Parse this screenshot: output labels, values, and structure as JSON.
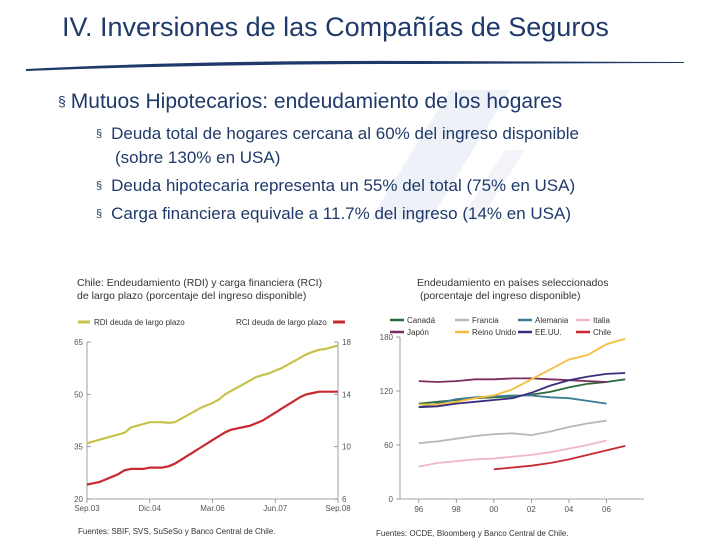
{
  "slide": {
    "title": "IV. Inversiones de las Compañías de Seguros",
    "main_bullet": "Mutuos Hipotecarios: endeudamiento de los hogares",
    "sub_bullets": [
      "Deuda total de hogares cercana al 60% del ingreso disponible",
      "(sobre 130% en USA)",
      "Deuda hipotecaria representa un 55% del total (75% en USA)",
      "Carga financiera equivale a 11.7% del ingreso (14% en USA)"
    ],
    "bullet_glyph": "§",
    "main_bullet_glyph": "§"
  },
  "left_chart": {
    "caption_line1": "Chile: Endeudamiento (RDI) y carga financiera (RCI)",
    "caption_line2": "de largo plazo (porcentaje del ingreso disponible)",
    "source": "Fuentes: SBIF, SVS, SuSeSo y Banco Central de Chile."
  },
  "right_chart": {
    "caption_line1": "Endeudamiento en países seleccionados",
    "caption_line2": "(porcentaje del ingreso disponible)",
    "source": "Fuentes: OCDE, Bloomberg y Banco Central de Chile."
  },
  "chart_data": [
    {
      "type": "line",
      "title": "Chile: Endeudamiento (RDI) y carga financiera (RCI) de largo plazo (porcentaje del ingreso disponible)",
      "categories": [
        "Sep.03",
        "Dic.04",
        "Mar.06",
        "Jun.07",
        "Sep.08"
      ],
      "y_left": {
        "ylim": [
          20,
          65
        ],
        "ticks": [
          20,
          35,
          50,
          65
        ]
      },
      "y_right": {
        "ylim": [
          6,
          18
        ],
        "ticks": [
          6,
          10,
          14,
          18
        ]
      },
      "series": [
        {
          "name": "RDI deuda de largo plazo",
          "axis": "left",
          "color": "#c6c24a",
          "x": [
            0,
            0.5,
            1,
            1.5,
            2,
            2.5,
            3,
            3.5,
            4,
            4.5,
            5,
            5.5,
            6,
            6.5,
            7,
            7.5,
            8,
            8.5,
            9,
            9.5,
            10,
            10.5,
            11,
            11.5,
            12,
            12.5,
            13,
            13.5,
            14,
            14.5,
            15,
            15.5,
            16,
            16.5,
            17,
            17.5,
            18,
            18.5,
            19,
            19.5,
            20
          ],
          "values": [
            36,
            36.5,
            37,
            37.5,
            38,
            38.5,
            39,
            40.5,
            41,
            41.5,
            42,
            42,
            42,
            41.8,
            42,
            43,
            44,
            45,
            46,
            46.8,
            47.5,
            48.5,
            50,
            51,
            52,
            53,
            54,
            55,
            55.5,
            56,
            56.8,
            57.5,
            58.5,
            59.5,
            60.5,
            61.5,
            62.2,
            62.8,
            63,
            63.5,
            64
          ]
        },
        {
          "name": "RCI deuda de largo plazo",
          "axis": "right",
          "color": "#c8282e",
          "x": [
            0,
            0.5,
            1,
            1.5,
            2,
            2.5,
            3,
            3.5,
            4,
            4.5,
            5,
            5.5,
            6,
            6.5,
            7,
            7.5,
            8,
            8.5,
            9,
            9.5,
            10,
            10.5,
            11,
            11.5,
            12,
            12.5,
            13,
            13.5,
            14,
            14.5,
            15,
            15.5,
            16,
            16.5,
            17,
            17.5,
            18,
            18.5,
            19,
            19.5,
            20
          ],
          "values": [
            7.1,
            7.2,
            7.3,
            7.5,
            7.7,
            7.9,
            8.2,
            8.3,
            8.3,
            8.3,
            8.4,
            8.4,
            8.4,
            8.5,
            8.7,
            9.0,
            9.3,
            9.6,
            9.9,
            10.2,
            10.5,
            10.8,
            11.1,
            11.3,
            11.4,
            11.5,
            11.6,
            11.8,
            12.0,
            12.3,
            12.6,
            12.9,
            13.2,
            13.5,
            13.8,
            14.0,
            14.1,
            14.2,
            14.2,
            14.2,
            14.2
          ]
        }
      ]
    },
    {
      "type": "line",
      "title": "Endeudamiento en países seleccionados (porcentaje del ingreso disponible)",
      "x_ticks": [
        "96",
        "98",
        "00",
        "02",
        "04",
        "06"
      ],
      "x_years": [
        96,
        98,
        100,
        102,
        104,
        106
      ],
      "ylim": [
        0,
        180
      ],
      "y_ticks": [
        0,
        60,
        120,
        180
      ],
      "series": [
        {
          "name": "Canadá",
          "color": "#2e6b3a",
          "x": [
            96,
            97,
            98,
            99,
            100,
            101,
            102,
            103,
            104,
            105,
            106,
            107
          ],
          "values": [
            106,
            108,
            110,
            112,
            113,
            114,
            116,
            119,
            124,
            128,
            130,
            133
          ]
        },
        {
          "name": "Francia",
          "color": "#b8b8b8",
          "x": [
            96,
            97,
            98,
            99,
            100,
            101,
            102,
            103,
            104,
            105,
            106
          ],
          "values": [
            62,
            64,
            67,
            70,
            72,
            73,
            71,
            75,
            80,
            84,
            87
          ]
        },
        {
          "name": "Alemania",
          "color": "#3d7d95",
          "x": [
            96,
            97,
            98,
            99,
            100,
            101,
            102,
            103,
            104,
            105,
            106
          ],
          "values": [
            102,
            106,
            111,
            113,
            114,
            115,
            115,
            113,
            112,
            109,
            106
          ]
        },
        {
          "name": "Italia",
          "color": "#efb6c6",
          "x": [
            96,
            97,
            98,
            99,
            100,
            101,
            102,
            103,
            104,
            105,
            106
          ],
          "values": [
            36,
            40,
            42,
            44,
            45,
            47,
            49,
            52,
            56,
            60,
            65
          ]
        },
        {
          "name": "Japón",
          "color": "#7a2d5e",
          "x": [
            96,
            97,
            98,
            99,
            100,
            101,
            102,
            103,
            104,
            105,
            106
          ],
          "values": [
            131,
            130,
            131,
            133,
            133,
            134,
            134,
            133,
            132,
            131,
            130
          ]
        },
        {
          "name": "Reino Unido",
          "color": "#f2bf3c",
          "x": [
            96,
            97,
            98,
            99,
            100,
            101,
            102,
            103,
            104,
            105,
            106,
            107
          ],
          "values": [
            105,
            105,
            108,
            112,
            115,
            122,
            133,
            144,
            155,
            160,
            172,
            178
          ]
        },
        {
          "name": "EE.UU.",
          "color": "#3a2e7c",
          "x": [
            96,
            97,
            98,
            99,
            100,
            101,
            102,
            103,
            104,
            105,
            106,
            107
          ],
          "values": [
            102,
            103,
            106,
            108,
            110,
            112,
            118,
            126,
            132,
            136,
            139,
            140
          ]
        },
        {
          "name": "Chile",
          "color": "#c8282e",
          "x": [
            100,
            101,
            102,
            103,
            104,
            105,
            106,
            107
          ],
          "values": [
            33,
            35,
            37,
            40,
            44,
            49,
            54,
            59
          ]
        }
      ]
    }
  ]
}
